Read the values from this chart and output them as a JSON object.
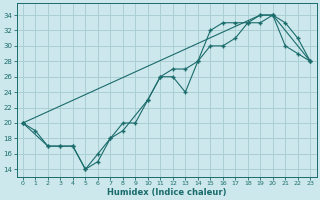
{
  "xlabel": "Humidex (Indice chaleur)",
  "xlim": [
    -0.5,
    23.5
  ],
  "ylim": [
    13,
    35.5
  ],
  "xticks": [
    0,
    1,
    2,
    3,
    4,
    5,
    6,
    7,
    8,
    9,
    10,
    11,
    12,
    13,
    14,
    15,
    16,
    17,
    18,
    19,
    20,
    21,
    22,
    23
  ],
  "yticks": [
    14,
    16,
    18,
    20,
    22,
    24,
    26,
    28,
    30,
    32,
    34
  ],
  "bg_color": "#cde8ec",
  "grid_color": "#aacfd4",
  "line_color": "#1a6b6b",
  "line1_x": [
    0,
    1,
    2,
    3,
    4,
    5,
    6,
    7,
    8,
    9,
    10,
    11,
    12,
    13,
    14,
    15,
    16,
    17,
    18,
    19,
    20,
    21,
    22,
    23
  ],
  "line1_y": [
    20,
    19,
    17,
    17,
    17,
    14,
    16,
    18,
    20,
    20,
    23,
    26,
    26,
    24,
    28,
    30,
    30,
    31,
    33,
    33,
    34,
    33,
    31,
    28
  ],
  "line2_x": [
    0,
    2,
    3,
    4,
    5,
    6,
    7,
    8,
    10,
    11,
    12,
    13,
    14,
    15,
    16,
    17,
    18,
    19,
    20,
    21,
    22,
    23
  ],
  "line2_y": [
    20,
    17,
    17,
    17,
    14,
    15,
    18,
    19,
    23,
    26,
    27,
    27,
    28,
    32,
    33,
    33,
    33,
    34,
    34,
    30,
    29,
    28
  ],
  "line3_x": [
    0,
    19,
    20,
    23
  ],
  "line3_y": [
    20,
    34,
    34,
    28
  ],
  "line1_markers_x": [
    0,
    1,
    2,
    3,
    4,
    5,
    6,
    7,
    8,
    9,
    10,
    11,
    12,
    13,
    14,
    15,
    16,
    17,
    18,
    19,
    20,
    21,
    22,
    23
  ],
  "line1_markers_y": [
    20,
    19,
    17,
    17,
    17,
    14,
    16,
    18,
    20,
    20,
    23,
    26,
    26,
    24,
    28,
    30,
    30,
    31,
    33,
    33,
    34,
    33,
    31,
    28
  ]
}
